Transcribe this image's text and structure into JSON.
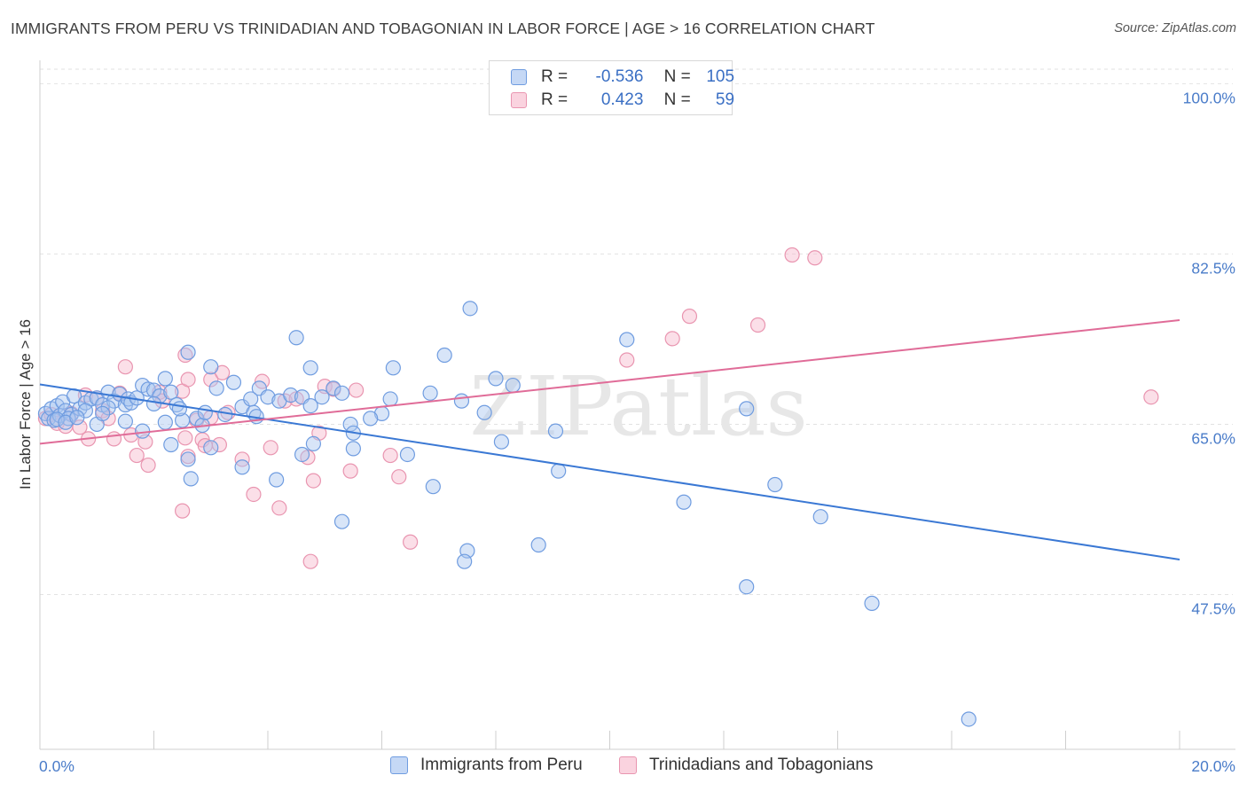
{
  "header": {
    "title": "IMMIGRANTS FROM PERU VS TRINIDADIAN AND TOBAGONIAN IN LABOR FORCE | AGE > 16 CORRELATION CHART",
    "source": "Source: ZipAtlas.com"
  },
  "watermark": "ZIPatlas",
  "legend_top": [
    {
      "r_label": "R =",
      "r_value": "-0.536",
      "n_label": "N =",
      "n_value": "105"
    },
    {
      "r_label": "R =",
      "r_value": "0.423",
      "n_label": "N =",
      "n_value": "59"
    }
  ],
  "colors": {
    "blue_fill": "#a9c6f0",
    "blue_stroke": "#6f9ce0",
    "blue_line": "#3a78d4",
    "pink_fill": "#f6b9cc",
    "pink_stroke": "#e995b0",
    "pink_line": "#e06c98",
    "tick_label": "#4a7cc9",
    "grid": "#e2e2e2",
    "axis": "#cfcfcf"
  },
  "chart_data": {
    "type": "scatter",
    "title": "IMMIGRANTS FROM PERU VS TRINIDADIAN AND TOBAGONIAN IN LABOR FORCE | AGE > 16 CORRELATION CHART",
    "xlabel": "",
    "ylabel": "In Labor Force | Age > 16",
    "xlim": [
      0,
      20
    ],
    "ylim": [
      31.6,
      102.4
    ],
    "x_tick_labels": [
      "0.0%",
      "20.0%"
    ],
    "y_ticks": [
      47.5,
      65.0,
      82.5,
      100.0
    ],
    "y_tick_labels": [
      "47.5%",
      "65.0%",
      "82.5%",
      "100.0%"
    ],
    "grid": true,
    "legend_position": "bottom",
    "series": [
      {
        "name": "Immigrants from Peru",
        "color": "#a9c6f0",
        "r": -0.536,
        "n": 105,
        "trend": [
          [
            0,
            69.1
          ],
          [
            20,
            51.1
          ]
        ],
        "points": [
          [
            0.1,
            66.1
          ],
          [
            0.15,
            65.6
          ],
          [
            0.2,
            66.6
          ],
          [
            0.25,
            65.4
          ],
          [
            0.3,
            66.9
          ],
          [
            0.35,
            65.9
          ],
          [
            0.4,
            67.3
          ],
          [
            0.45,
            66.4
          ],
          [
            0.55,
            66.0
          ],
          [
            0.6,
            67.9
          ],
          [
            0.7,
            66.6
          ],
          [
            0.8,
            67.2
          ],
          [
            0.9,
            67.6
          ],
          [
            1.0,
            67.7
          ],
          [
            1.1,
            67.0
          ],
          [
            1.2,
            68.3
          ],
          [
            1.3,
            67.4
          ],
          [
            1.4,
            68.1
          ],
          [
            1.5,
            67.0
          ],
          [
            1.55,
            67.6
          ],
          [
            1.6,
            67.2
          ],
          [
            1.7,
            67.7
          ],
          [
            1.8,
            69.0
          ],
          [
            1.9,
            68.6
          ],
          [
            2.0,
            68.5
          ],
          [
            2.1,
            67.9
          ],
          [
            2.2,
            69.7
          ],
          [
            2.3,
            68.3
          ],
          [
            2.4,
            67.0
          ],
          [
            2.5,
            65.4
          ],
          [
            2.6,
            72.4
          ],
          [
            2.75,
            65.6
          ],
          [
            2.85,
            64.9
          ],
          [
            3.0,
            70.9
          ],
          [
            3.1,
            68.7
          ],
          [
            3.25,
            66.0
          ],
          [
            3.4,
            69.3
          ],
          [
            3.55,
            66.8
          ],
          [
            3.75,
            66.2
          ],
          [
            3.85,
            68.7
          ],
          [
            4.0,
            67.8
          ],
          [
            4.2,
            67.4
          ],
          [
            4.4,
            68.0
          ],
          [
            4.6,
            67.8
          ],
          [
            4.75,
            66.9
          ],
          [
            4.95,
            67.8
          ],
          [
            5.15,
            68.7
          ],
          [
            5.3,
            68.2
          ],
          [
            5.45,
            65.0
          ],
          [
            5.5,
            64.1
          ],
          [
            6.15,
            67.6
          ],
          [
            6.45,
            61.9
          ],
          [
            6.85,
            68.2
          ],
          [
            7.1,
            72.1
          ],
          [
            7.4,
            67.4
          ],
          [
            7.8,
            66.2
          ],
          [
            8.1,
            63.2
          ],
          [
            3.55,
            60.6
          ],
          [
            4.6,
            61.9
          ],
          [
            5.5,
            62.5
          ],
          [
            4.15,
            59.3
          ],
          [
            2.65,
            59.4
          ],
          [
            2.6,
            61.4
          ],
          [
            5.3,
            55.0
          ],
          [
            6.9,
            58.6
          ],
          [
            7.5,
            52.0
          ],
          [
            7.45,
            50.9
          ],
          [
            8.75,
            52.6
          ],
          [
            9.1,
            60.2
          ],
          [
            9.05,
            64.3
          ],
          [
            8.0,
            69.7
          ],
          [
            8.3,
            69.0
          ],
          [
            11.3,
            57.0
          ],
          [
            12.4,
            48.3
          ],
          [
            13.7,
            55.5
          ],
          [
            14.6,
            46.6
          ],
          [
            12.4,
            66.6
          ],
          [
            12.9,
            58.8
          ],
          [
            10.3,
            73.7
          ],
          [
            16.3,
            34.7
          ],
          [
            7.55,
            76.9
          ],
          [
            4.5,
            73.9
          ],
          [
            4.75,
            70.8
          ],
          [
            6.2,
            70.8
          ],
          [
            2.3,
            62.9
          ],
          [
            3.0,
            62.6
          ],
          [
            1.5,
            65.3
          ],
          [
            0.5,
            65.6
          ],
          [
            1.2,
            66.7
          ],
          [
            2.2,
            65.2
          ],
          [
            3.8,
            65.8
          ],
          [
            4.8,
            63.0
          ],
          [
            1.0,
            65.0
          ],
          [
            0.3,
            65.5
          ],
          [
            0.8,
            66.4
          ],
          [
            1.8,
            64.3
          ],
          [
            2.9,
            66.2
          ],
          [
            3.7,
            67.6
          ],
          [
            6.0,
            66.1
          ],
          [
            0.45,
            65.2
          ],
          [
            0.65,
            65.7
          ],
          [
            1.1,
            66.1
          ],
          [
            2.0,
            67.1
          ],
          [
            2.45,
            66.6
          ],
          [
            5.8,
            65.6
          ]
        ]
      },
      {
        "name": "Trinidadians and Tobagonians",
        "color": "#f6b9cc",
        "r": 0.423,
        "n": 59,
        "trend": [
          [
            0,
            63.0
          ],
          [
            20,
            75.7
          ]
        ],
        "points": [
          [
            0.1,
            65.6
          ],
          [
            0.2,
            66.0
          ],
          [
            0.3,
            65.1
          ],
          [
            0.45,
            64.8
          ],
          [
            0.55,
            66.1
          ],
          [
            0.7,
            64.7
          ],
          [
            0.8,
            68.0
          ],
          [
            0.85,
            63.5
          ],
          [
            1.0,
            67.7
          ],
          [
            1.1,
            66.4
          ],
          [
            1.2,
            65.6
          ],
          [
            1.3,
            63.5
          ],
          [
            1.4,
            68.2
          ],
          [
            1.5,
            70.9
          ],
          [
            1.6,
            63.9
          ],
          [
            1.7,
            61.8
          ],
          [
            1.85,
            63.2
          ],
          [
            1.9,
            60.8
          ],
          [
            2.1,
            68.3
          ],
          [
            2.15,
            67.4
          ],
          [
            2.5,
            68.4
          ],
          [
            2.6,
            69.6
          ],
          [
            2.75,
            65.4
          ],
          [
            2.85,
            63.4
          ],
          [
            3.0,
            69.6
          ],
          [
            3.15,
            62.9
          ],
          [
            3.3,
            66.2
          ],
          [
            3.55,
            61.4
          ],
          [
            3.75,
            57.8
          ],
          [
            3.9,
            69.4
          ],
          [
            4.05,
            62.6
          ],
          [
            4.2,
            56.4
          ],
          [
            4.3,
            67.4
          ],
          [
            4.5,
            67.6
          ],
          [
            4.7,
            61.6
          ],
          [
            4.8,
            59.2
          ],
          [
            4.9,
            64.1
          ],
          [
            5.0,
            68.9
          ],
          [
            5.15,
            68.6
          ],
          [
            5.45,
            60.2
          ],
          [
            5.55,
            68.5
          ],
          [
            6.15,
            61.8
          ],
          [
            6.3,
            59.6
          ],
          [
            6.5,
            52.9
          ],
          [
            4.75,
            50.9
          ],
          [
            3.0,
            65.7
          ],
          [
            2.9,
            62.8
          ],
          [
            2.6,
            61.7
          ],
          [
            2.55,
            63.6
          ],
          [
            2.55,
            72.1
          ],
          [
            3.2,
            70.3
          ],
          [
            10.3,
            71.6
          ],
          [
            11.1,
            73.8
          ],
          [
            11.4,
            76.1
          ],
          [
            12.6,
            75.2
          ],
          [
            13.2,
            82.4
          ],
          [
            13.6,
            82.1
          ],
          [
            19.5,
            67.8
          ],
          [
            2.5,
            56.1
          ]
        ]
      }
    ]
  }
}
